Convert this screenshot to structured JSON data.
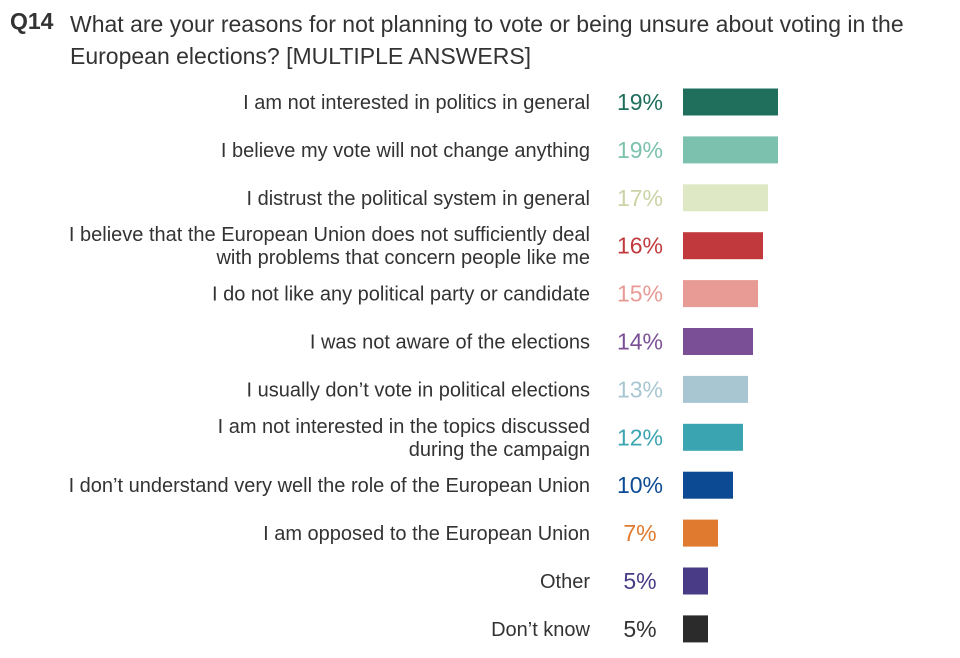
{
  "header": {
    "code": "Q14",
    "question": "What are your reasons for not planning to vote or being unsure about voting in the European elections? [MULTIPLE ANSWERS]"
  },
  "chart_data": {
    "type": "bar",
    "orientation": "horizontal",
    "value_suffix": "%",
    "xlim": [
      0,
      19
    ],
    "grid": false,
    "legend": "none",
    "categories": [
      [
        "I am not interested in politics in general"
      ],
      [
        "I believe my vote will not change anything"
      ],
      [
        "I distrust the political system in general"
      ],
      [
        "I believe that the European Union does not sufficiently deal",
        "with problems that concern people like me"
      ],
      [
        "I do not like any political party or candidate"
      ],
      [
        "I was not aware of the elections"
      ],
      [
        "I usually don’t vote in political elections"
      ],
      [
        "I am not interested in the topics discussed",
        "during the campaign"
      ],
      [
        "I don’t understand very well the role of the European Union"
      ],
      [
        "I am opposed to the European Union"
      ],
      [
        "Other"
      ],
      [
        "Don’t know"
      ]
    ],
    "values": [
      19,
      19,
      17,
      16,
      15,
      14,
      13,
      12,
      10,
      7,
      5,
      5
    ],
    "colors": [
      "#1f6f5c",
      "#7cc1ad",
      "#dfe8c4",
      "#c1393d",
      "#e89a94",
      "#7b4f96",
      "#a8c6d1",
      "#3aa4b0",
      "#0d4a94",
      "#e07a2e",
      "#4a3b86",
      "#2b2b2b"
    ]
  }
}
